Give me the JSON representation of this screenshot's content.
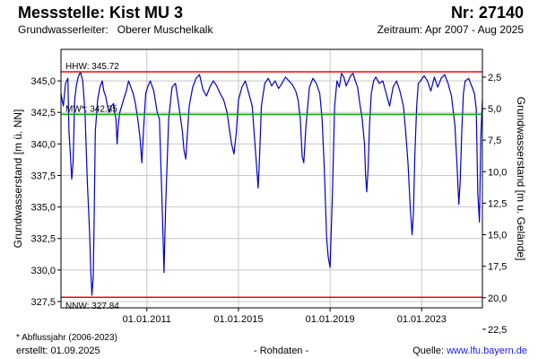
{
  "header": {
    "title": "Messstelle: Kist MU 3",
    "number": "Nr: 27140",
    "aquifer_label": "Grundwasserleiter:",
    "aquifer_value": "Oberer Muschelkalk",
    "period": "Zeitraum: Apr 2007 - Aug 2025"
  },
  "footer": {
    "note": "* Abflussjahr (2006-2023)",
    "created": "erstellt:  01.09.2025",
    "raw": "- Rohdaten -",
    "source_label": "Quelle: ",
    "source_link": "www.lfu.bayern.de"
  },
  "colors": {
    "series": "#0000cc",
    "extreme_lines": "#ff0000",
    "mean_line": "#00aa00",
    "grid": "#c8c8c8"
  },
  "chart_data": {
    "type": "line",
    "ylabel_left": "Grundwasserstand [m ü. NN]",
    "ylabel_right": "Grundwasserstand [m u. Gelände]",
    "ylim": [
      327.0,
      347.5
    ],
    "xlim": [
      2007.25,
      2025.65
    ],
    "y_ticks": [
      327.5,
      330.0,
      332.5,
      335.0,
      337.5,
      340.0,
      342.5,
      345.0
    ],
    "y_tick_labels": [
      "327,5",
      "330,0",
      "332,5",
      "335,0",
      "337,5",
      "340,0",
      "342,5",
      "345,0"
    ],
    "right_ticks": [
      2.5,
      5.0,
      7.5,
      10.0,
      12.5,
      15.0,
      17.5,
      20.0,
      22.5
    ],
    "right_tick_labels": [
      "2,5",
      "5,0",
      "7,5",
      "10,0",
      "12,5",
      "15,0",
      "17,5",
      "20,0",
      "22,5"
    ],
    "right_axis_reference": 347.8,
    "x_ticks": [
      2011.0,
      2015.0,
      2019.0,
      2023.0
    ],
    "x_tick_labels": [
      "01.01.2011",
      "01.01.2015",
      "01.01.2019",
      "01.01.2023"
    ],
    "grid": true,
    "reference_lines": [
      {
        "label": "HHW: 345.72",
        "value": 345.72,
        "color": "#ff0000"
      },
      {
        "label": "MW*: 342.35",
        "value": 342.35,
        "color": "#00aa00"
      },
      {
        "label": "NNW: 327.84",
        "value": 327.84,
        "color": "#ff0000"
      }
    ],
    "series": [
      {
        "x": [
          2007.25,
          2007.35,
          2007.45,
          2007.55,
          2007.6,
          2007.65,
          2007.72,
          2007.78,
          2007.85,
          2007.92,
          2008.0,
          2008.1,
          2008.2,
          2008.3,
          2008.4,
          2008.5,
          2008.55,
          2008.6,
          2008.66,
          2008.7,
          2008.75,
          2008.85,
          2008.95,
          2009.05,
          2009.12,
          2009.2,
          2009.28,
          2009.35,
          2009.45,
          2009.55,
          2009.6,
          2009.65,
          2009.7,
          2009.75,
          2009.82,
          2009.9,
          2010.0,
          2010.1,
          2010.2,
          2010.3,
          2010.4,
          2010.5,
          2010.6,
          2010.7,
          2010.78,
          2010.85,
          2010.95,
          2011.05,
          2011.15,
          2011.3,
          2011.45,
          2011.55,
          2011.62,
          2011.7,
          2011.75,
          2011.82,
          2011.95,
          2012.1,
          2012.25,
          2012.4,
          2012.55,
          2012.62,
          2012.7,
          2012.76,
          2012.85,
          2013.0,
          2013.15,
          2013.3,
          2013.45,
          2013.6,
          2013.75,
          2013.9,
          2014.05,
          2014.2,
          2014.35,
          2014.5,
          2014.6,
          2014.7,
          2014.8,
          2014.9,
          2015.0,
          2015.15,
          2015.3,
          2015.45,
          2015.6,
          2015.7,
          2015.8,
          2015.86,
          2015.92,
          2016.0,
          2016.15,
          2016.3,
          2016.45,
          2016.6,
          2016.75,
          2016.9,
          2017.05,
          2017.2,
          2017.35,
          2017.5,
          2017.6,
          2017.7,
          2017.78,
          2017.85,
          2017.95,
          2018.1,
          2018.25,
          2018.4,
          2018.55,
          2018.65,
          2018.75,
          2018.85,
          2018.92,
          2019.0,
          2019.1,
          2019.2,
          2019.3,
          2019.4,
          2019.5,
          2019.6,
          2019.7,
          2019.8,
          2019.9,
          2020.0,
          2020.1,
          2020.2,
          2020.3,
          2020.4,
          2020.5,
          2020.55,
          2020.6,
          2020.66,
          2020.72,
          2020.8,
          2020.9,
          2021.0,
          2021.15,
          2021.3,
          2021.45,
          2021.6,
          2021.75,
          2021.9,
          2022.05,
          2022.2,
          2022.3,
          2022.4,
          2022.5,
          2022.58,
          2022.64,
          2022.7,
          2022.78,
          2022.85,
          2022.95,
          2023.1,
          2023.25,
          2023.4,
          2023.55,
          2023.7,
          2023.85,
          2024.0,
          2024.15,
          2024.3,
          2024.45,
          2024.55,
          2024.62,
          2024.68,
          2024.75,
          2024.82,
          2024.9,
          2025.05,
          2025.2,
          2025.3,
          2025.38,
          2025.45,
          2025.52,
          2025.58,
          2025.65
        ],
        "y": [
          344.0,
          343.0,
          344.8,
          345.2,
          341.0,
          339.5,
          337.2,
          338.5,
          343.5,
          344.6,
          345.3,
          345.7,
          345.0,
          342.5,
          337.0,
          333.0,
          330.0,
          328.0,
          329.5,
          334.0,
          341.0,
          343.5,
          344.5,
          345.0,
          344.2,
          343.8,
          343.0,
          342.5,
          343.0,
          343.2,
          342.4,
          342.0,
          340.0,
          341.5,
          342.5,
          343.0,
          343.6,
          344.2,
          345.0,
          344.5,
          344.0,
          343.2,
          342.0,
          340.5,
          338.5,
          341.0,
          344.0,
          344.6,
          345.0,
          344.2,
          342.5,
          342.0,
          338.0,
          333.0,
          329.8,
          335.0,
          342.0,
          344.5,
          344.8,
          343.0,
          341.0,
          339.5,
          338.8,
          340.5,
          343.0,
          344.5,
          345.2,
          345.5,
          344.3,
          343.8,
          344.5,
          345.0,
          344.6,
          344.0,
          343.5,
          342.5,
          341.2,
          340.0,
          339.2,
          340.8,
          343.5,
          344.5,
          345.0,
          344.0,
          343.0,
          340.5,
          338.0,
          336.5,
          339.0,
          343.0,
          344.8,
          345.2,
          344.6,
          345.0,
          344.4,
          344.8,
          345.3,
          345.0,
          344.7,
          344.2,
          343.5,
          342.0,
          339.0,
          338.5,
          341.5,
          344.5,
          345.2,
          344.8,
          344.0,
          342.0,
          338.0,
          332.5,
          331.0,
          330.2,
          336.0,
          343.0,
          345.0,
          344.5,
          345.6,
          345.3,
          344.6,
          345.0,
          345.4,
          345.6,
          345.0,
          344.5,
          343.2,
          342.0,
          340.0,
          337.5,
          336.2,
          338.0,
          341.5,
          344.0,
          345.0,
          345.3,
          344.8,
          345.0,
          344.0,
          343.0,
          344.5,
          345.0,
          344.2,
          343.0,
          341.0,
          338.5,
          335.0,
          332.8,
          334.5,
          339.0,
          343.0,
          344.8,
          345.0,
          345.4,
          345.0,
          344.2,
          345.3,
          344.5,
          345.2,
          345.5,
          344.8,
          343.8,
          341.5,
          338.0,
          335.2,
          337.0,
          341.0,
          344.0,
          345.0,
          345.2,
          344.5,
          344.0,
          342.8,
          336.0,
          333.8,
          340.5,
          343.5
        ]
      }
    ]
  }
}
